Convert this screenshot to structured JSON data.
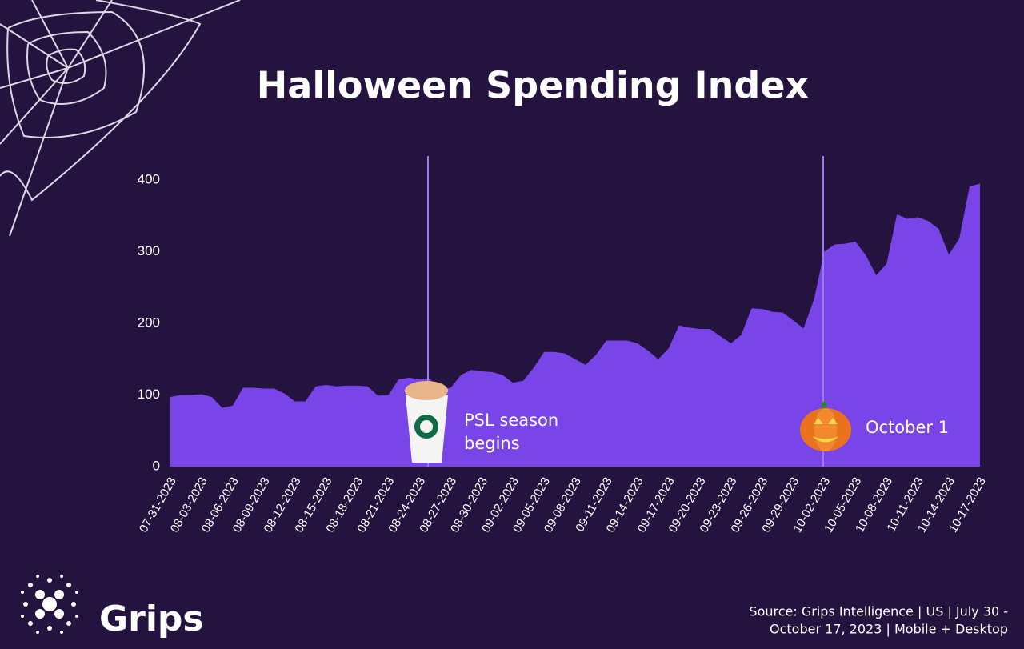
{
  "chart_data": {
    "type": "area",
    "title": "Halloween Spending Index",
    "categories": [
      "07-31-2023",
      null,
      null,
      "08-03-2023",
      null,
      null,
      "08-06-2023",
      null,
      null,
      "08-09-2023",
      null,
      null,
      "08-12-2023",
      null,
      null,
      "08-15-2023",
      null,
      null,
      "08-18-2023",
      null,
      null,
      "08-21-2023",
      null,
      null,
      "08-24-2023",
      null,
      null,
      "08-27-2023",
      null,
      null,
      "08-30-2023",
      null,
      null,
      "09-02-2023",
      null,
      null,
      "09-05-2023",
      null,
      null,
      "09-08-2023",
      null,
      null,
      "09-11-2023",
      null,
      null,
      "09-14-2023",
      null,
      null,
      "09-17-2023",
      null,
      null,
      "09-20-2023",
      null,
      null,
      "09-23-2023",
      null,
      null,
      "09-26-2023",
      null,
      null,
      "09-29-2023",
      null,
      null,
      "10-02-2023",
      null,
      null,
      "10-05-2023",
      null,
      null,
      "10-08-2023",
      null,
      null,
      "10-11-2023",
      null,
      null,
      "10-14-2023",
      null,
      null,
      "10-17-2023"
    ],
    "values": [
      97,
      100,
      100,
      101,
      97,
      82,
      85,
      110,
      110,
      109,
      109,
      102,
      91,
      91,
      112,
      114,
      112,
      113,
      113,
      112,
      99,
      100,
      122,
      124,
      122,
      122,
      108,
      110,
      128,
      135,
      133,
      132,
      128,
      117,
      120,
      138,
      160,
      160,
      158,
      150,
      142,
      156,
      176,
      176,
      176,
      172,
      162,
      150,
      165,
      197,
      194,
      192,
      192,
      182,
      172,
      184,
      221,
      220,
      216,
      215,
      204,
      193,
      233,
      300,
      310,
      311,
      314,
      295,
      267,
      283,
      352,
      346,
      348,
      343,
      332,
      296,
      318,
      391,
      395
    ],
    "color": "#7a45e8",
    "ylim": [
      0,
      400
    ],
    "yticks": [
      0,
      100,
      200,
      300,
      400
    ],
    "grid": false
  },
  "annotations": [
    {
      "lines": [
        "PSL season",
        "begins"
      ]
    },
    {
      "lines": [
        "October 1"
      ]
    }
  ],
  "logo": "Grips",
  "source": [
    "Source: Grips Intelligence | US | July 30 -",
    "October 17, 2023 | Mobile + Desktop"
  ]
}
